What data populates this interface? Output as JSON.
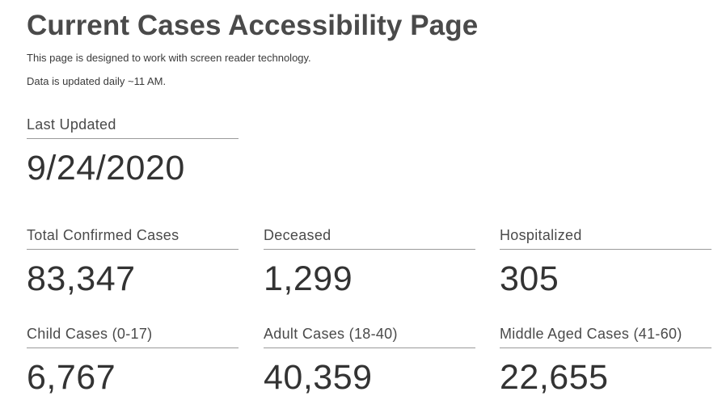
{
  "header": {
    "title": "Current Cases Accessibility Page",
    "subtitle": "This page is designed to work with screen reader technology.",
    "update_note": "Data is updated daily ~11 AM."
  },
  "last_updated": {
    "label": "Last Updated",
    "value": "9/24/2020"
  },
  "stats": [
    {
      "label": "Total Confirmed Cases",
      "value": "83,347"
    },
    {
      "label": "Deceased",
      "value": "1,299"
    },
    {
      "label": "Hospitalized",
      "value": "305"
    },
    {
      "label": "Child Cases (0-17)",
      "value": "6,767"
    },
    {
      "label": "Adult Cases (18-40)",
      "value": "40,359"
    },
    {
      "label": "Middle Aged Cases (41-60)",
      "value": "22,655"
    }
  ]
}
